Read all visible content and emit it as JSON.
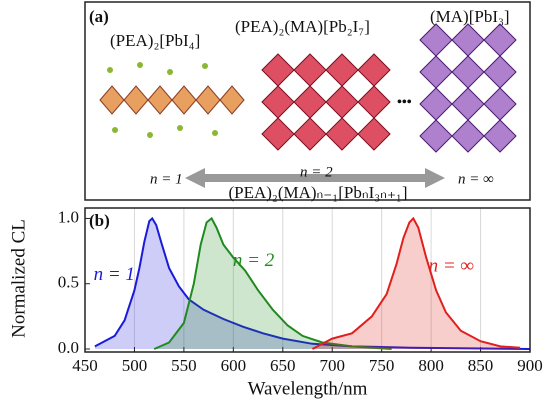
{
  "panel_a": {
    "label": "(a)",
    "structure_labels": [
      "(PEA)₂[PbI₄]",
      "(PEA)₂(MA)[Pb₂I₇]",
      "(MA)[PbI₃]"
    ],
    "ellipsis": "•••",
    "n_labels": [
      "n = 1",
      "n = 2",
      "n = ∞"
    ],
    "formula": "(PEA)₂(MA)ₙ₋₁[PbₙI₃ₙ₊₁]"
  },
  "chart_data": {
    "type": "line",
    "panel_label": "(b)",
    "x_label": "Wavelength/nm",
    "y_label": "Normalized CL",
    "xlim": [
      450,
      900
    ],
    "xticks": [
      450,
      500,
      550,
      600,
      650,
      700,
      750,
      800,
      850,
      900
    ],
    "ylim": [
      0,
      1.08
    ],
    "yticks": [
      {
        "value": 0,
        "label": "0.0"
      },
      0.5,
      {
        "value": 1,
        "label": "1.0"
      }
    ],
    "grid": true,
    "fill_under": true,
    "series": [
      {
        "name": "n = 1",
        "color": "#1a1adb",
        "x": [
          460,
          480,
          490,
          500,
          505,
          510,
          515,
          518,
          522,
          527,
          535,
          545,
          555,
          570,
          590,
          610,
          630,
          650,
          680,
          720,
          780,
          900
        ],
        "values": [
          0.02,
          0.1,
          0.22,
          0.45,
          0.62,
          0.82,
          0.98,
          1.0,
          0.95,
          0.82,
          0.62,
          0.48,
          0.38,
          0.3,
          0.23,
          0.17,
          0.12,
          0.08,
          0.04,
          0.02,
          0.01,
          0.0
        ]
      },
      {
        "name": "n = 2",
        "color": "#1f8a1f",
        "x": [
          520,
          535,
          550,
          560,
          567,
          573,
          578,
          583,
          590,
          600,
          612,
          625,
          640,
          655,
          670,
          690,
          720,
          760
        ],
        "values": [
          0.0,
          0.05,
          0.2,
          0.5,
          0.8,
          0.97,
          1.0,
          0.93,
          0.8,
          0.7,
          0.6,
          0.45,
          0.3,
          0.18,
          0.1,
          0.05,
          0.02,
          0.0
        ]
      },
      {
        "name": "n = ∞",
        "color": "#e0201c",
        "x": [
          680,
          700,
          720,
          740,
          755,
          765,
          772,
          778,
          782,
          787,
          795,
          805,
          815,
          830,
          850,
          870,
          890
        ],
        "values": [
          0.0,
          0.08,
          0.12,
          0.25,
          0.42,
          0.65,
          0.85,
          0.97,
          1.0,
          0.93,
          0.7,
          0.45,
          0.28,
          0.14,
          0.06,
          0.02,
          0.01
        ]
      }
    ]
  }
}
